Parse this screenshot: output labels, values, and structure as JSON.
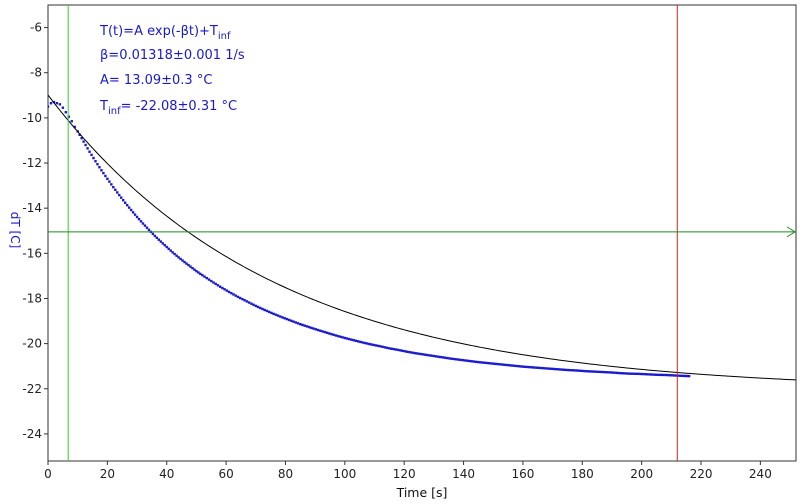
{
  "chart_data": {
    "type": "scatter",
    "xlabel": "Time [s]",
    "ylabel": "dT [C]",
    "xlim": [
      0,
      252
    ],
    "ylim": [
      -25.2,
      -5
    ],
    "xticks": [
      0,
      20,
      40,
      60,
      80,
      100,
      120,
      140,
      160,
      180,
      200,
      220,
      240
    ],
    "yticks": [
      -24,
      -22,
      -20,
      -18,
      -16,
      -14,
      -12,
      -10,
      -8,
      -6
    ],
    "grid": false,
    "colors": {
      "data": "#1a1acc",
      "fit": "#000000",
      "left_cursor": "#33cc33",
      "right_cursor": "#cc2222",
      "h_cursor": "#228822",
      "text": "#1a1acc"
    },
    "cursors": {
      "vertical_left_x": 6.8,
      "vertical_right_x": 212,
      "horizontal_y": -15.05
    },
    "annotations": {
      "formula_main": "T(t)=A exp(-βt)+T",
      "formula_sub": "inf",
      "beta": "β=0.01318±0.001 1/s",
      "amplitude": "A= 13.09±0.3 °C",
      "tinf_main": "T",
      "tinf_sub": "inf",
      "tinf_value": "= -22.08±0.31 °C"
    },
    "fit": {
      "A": 13.09,
      "beta": 0.01318,
      "T_inf": -22.08,
      "x_range": [
        0,
        252
      ]
    },
    "series": [
      {
        "kind": "scatter",
        "x": [
          0,
          1,
          2,
          3,
          4,
          5,
          6,
          7,
          8,
          9,
          10,
          12,
          14,
          16,
          18,
          20,
          22,
          24,
          26,
          28,
          30,
          32,
          34,
          36,
          38,
          40,
          42,
          44,
          46,
          48,
          50,
          52,
          55,
          58,
          61,
          64,
          67,
          70,
          73,
          76,
          79,
          82,
          85,
          88,
          91,
          94,
          97,
          100,
          103,
          106,
          109,
          112,
          115,
          118,
          121,
          124,
          127,
          130,
          133,
          136,
          139,
          142,
          145,
          148,
          151,
          154,
          157,
          160,
          163,
          166,
          169,
          172,
          175,
          178,
          181,
          184,
          187,
          190,
          193,
          196,
          199,
          202,
          205,
          208,
          211,
          214,
          216
        ],
        "y": [
          -9.5,
          -9.35,
          -9.3,
          -9.35,
          -9.4,
          -9.55,
          -9.75,
          -9.95,
          -10.15,
          -10.4,
          -10.6,
          -11.05,
          -11.5,
          -11.92,
          -12.32,
          -12.7,
          -13.07,
          -13.42,
          -13.76,
          -14.08,
          -14.39,
          -14.68,
          -14.96,
          -15.23,
          -15.48,
          -15.72,
          -15.96,
          -16.18,
          -16.39,
          -16.59,
          -16.79,
          -16.97,
          -17.23,
          -17.48,
          -17.71,
          -17.93,
          -18.13,
          -18.33,
          -18.51,
          -18.68,
          -18.84,
          -18.99,
          -19.14,
          -19.27,
          -19.4,
          -19.52,
          -19.64,
          -19.75,
          -19.85,
          -19.95,
          -20.04,
          -20.12,
          -20.21,
          -20.28,
          -20.36,
          -20.43,
          -20.49,
          -20.55,
          -20.61,
          -20.67,
          -20.72,
          -20.77,
          -20.82,
          -20.86,
          -20.9,
          -20.94,
          -20.98,
          -21.02,
          -21.05,
          -21.08,
          -21.11,
          -21.14,
          -21.17,
          -21.19,
          -21.22,
          -21.24,
          -21.26,
          -21.28,
          -21.31,
          -21.33,
          -21.34,
          -21.36,
          -21.38,
          -21.39,
          -21.41,
          -21.43,
          -21.44
        ]
      }
    ]
  }
}
